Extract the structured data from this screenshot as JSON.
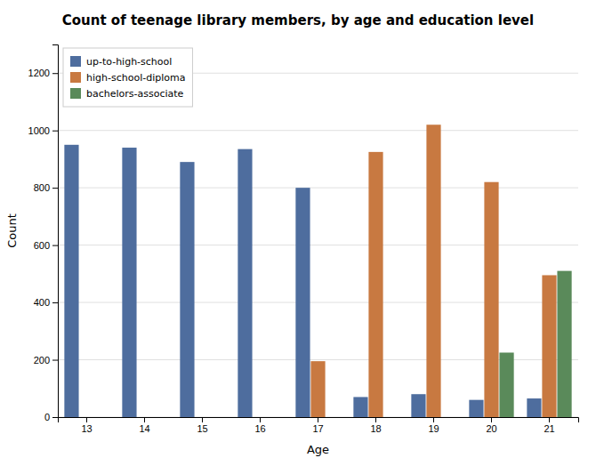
{
  "chart_data": {
    "type": "bar",
    "title": "Count of teenage library members, by age and education level",
    "xlabel": "Age",
    "ylabel": "Count",
    "categories": [
      "13",
      "14",
      "15",
      "16",
      "17",
      "18",
      "19",
      "20",
      "21"
    ],
    "series": [
      {
        "name": "up-to-high-school",
        "color": "#4e6d9e",
        "values": [
          950,
          940,
          890,
          935,
          800,
          70,
          80,
          60,
          65
        ]
      },
      {
        "name": "high-school-diploma",
        "color": "#c87941",
        "values": [
          0,
          0,
          0,
          0,
          195,
          925,
          1020,
          820,
          495
        ]
      },
      {
        "name": "bachelors-associate",
        "color": "#5a8a5a",
        "values": [
          0,
          0,
          0,
          0,
          0,
          0,
          0,
          225,
          510
        ]
      }
    ],
    "ylim": [
      0,
      1300
    ],
    "yticks": [
      0,
      200,
      400,
      600,
      800,
      1000,
      1200
    ],
    "grid": true,
    "legend": "upper left"
  }
}
